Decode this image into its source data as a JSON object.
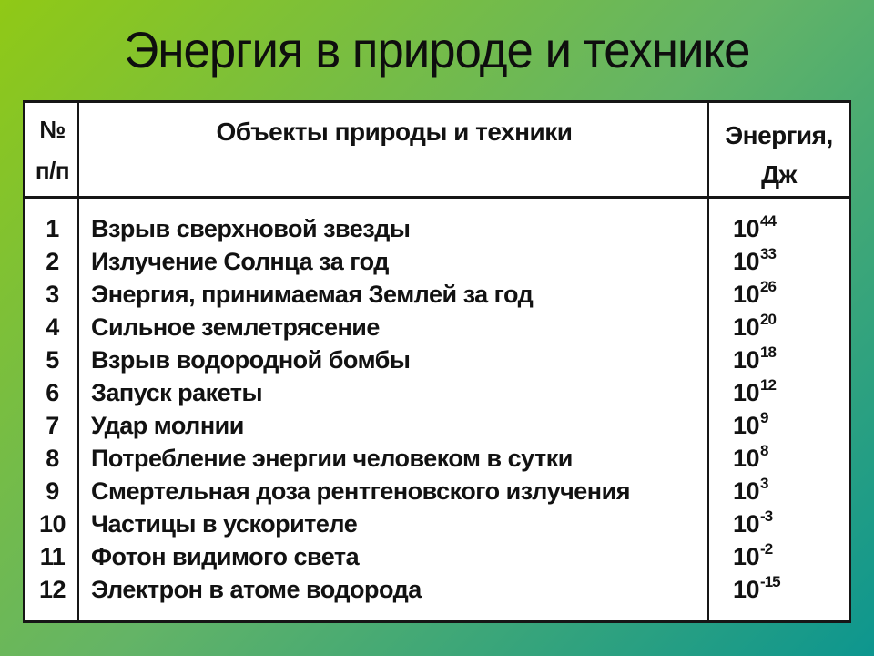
{
  "title": "Энергия в природе и технике",
  "colors": {
    "background_gradient_start": "#90c916",
    "background_gradient_mid": "#64b466",
    "background_gradient_end": "#0d968f",
    "table_background": "#ffffff",
    "table_lines": "#161616",
    "text": "#121212"
  },
  "table": {
    "header": {
      "num_line1": "№",
      "num_line2": "п/п",
      "objects": "Объекты природы и техники",
      "energy_line1": "Энергия,",
      "energy_line2": "Дж"
    },
    "rows": [
      {
        "num": "1",
        "object": "Взрыв сверхновой звезды",
        "base": "10",
        "exp": "44"
      },
      {
        "num": "2",
        "object": "Излучение Солнца за год",
        "base": "10",
        "exp": "33"
      },
      {
        "num": "3",
        "object": "Энергия, принимаемая Землей за год",
        "base": "10",
        "exp": "26"
      },
      {
        "num": "4",
        "object": "Сильное землетрясение",
        "base": "10",
        "exp": "20"
      },
      {
        "num": "5",
        "object": "Взрыв водородной бомбы",
        "base": "10",
        "exp": "18"
      },
      {
        "num": "6",
        "object": "Запуск ракеты",
        "base": "10",
        "exp": "12"
      },
      {
        "num": "7",
        "object": "Удар молнии",
        "base": "10",
        "exp": "9"
      },
      {
        "num": "8",
        "object": "Потребление энергии человеком в сутки",
        "base": "10",
        "exp": "8"
      },
      {
        "num": "9",
        "object": "Смертельная доза рентгеновского излучения",
        "base": "10",
        "exp": "3"
      },
      {
        "num": "10",
        "object": "Частицы в ускорителе",
        "base": "10",
        "exp": "-3"
      },
      {
        "num": "11",
        "object": "Фотон видимого света",
        "base": "10",
        "exp": "-2"
      },
      {
        "num": "12",
        "object": "Электрон в атоме водорода",
        "base": "10",
        "exp": "-15"
      }
    ]
  }
}
